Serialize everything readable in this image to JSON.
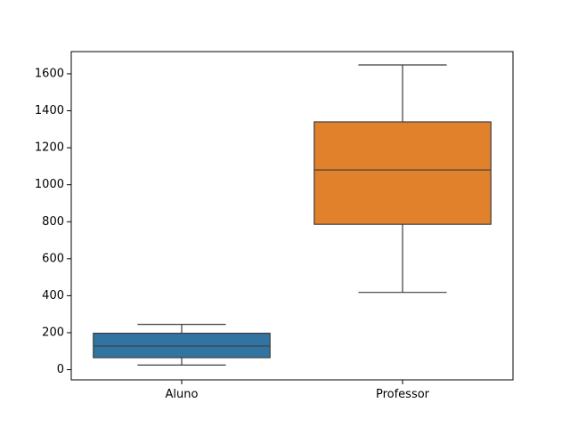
{
  "chart_data": {
    "type": "box",
    "title": "",
    "xlabel": "",
    "ylabel": "",
    "ylim": [
      -55,
      1720
    ],
    "yticks": [
      0,
      200,
      400,
      600,
      800,
      1000,
      1200,
      1400,
      1600
    ],
    "ytick_labels": [
      "0",
      "200",
      "400",
      "600",
      "800",
      "1000",
      "1200",
      "1400",
      "1600"
    ],
    "categories": [
      "Aluno",
      "Professor"
    ],
    "boxes": [
      {
        "category": "Aluno",
        "whisker_low": 25,
        "q1": 65,
        "median": 128,
        "q3": 197,
        "whisker_high": 245,
        "color": "#3274a1"
      },
      {
        "category": "Professor",
        "whisker_low": 418,
        "q1": 786,
        "median": 1080,
        "q3": 1340,
        "whisker_high": 1648,
        "color": "#e1812c"
      }
    ],
    "line_color": "#3d3d3d"
  }
}
